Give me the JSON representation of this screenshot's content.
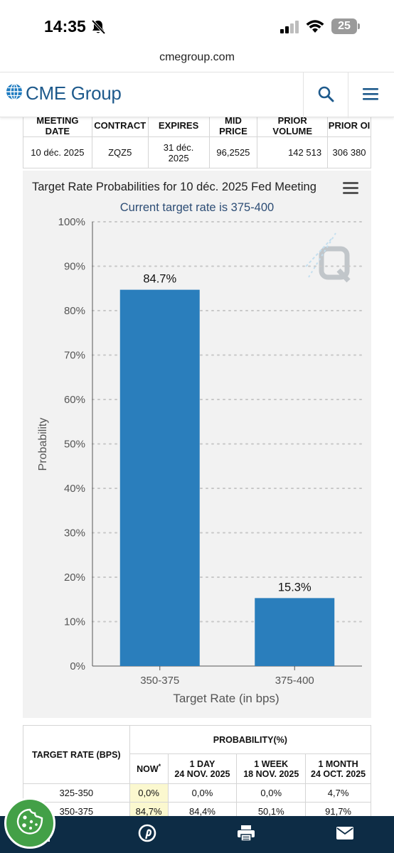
{
  "status_bar": {
    "time": "14:35",
    "battery_level": "25",
    "icons": [
      "bell-slash-icon",
      "signal-icon",
      "wifi-icon",
      "battery-icon"
    ]
  },
  "browser": {
    "url": "cmegroup.com"
  },
  "header": {
    "brand": "CME Group",
    "icons": [
      "globe-logo-icon",
      "search-icon",
      "menu-icon"
    ]
  },
  "contract_table": {
    "headers": [
      "MEETING DATE",
      "CONTRACT",
      "EXPIRES",
      "MID PRICE",
      "PRIOR VOLUME",
      "PRIOR OI"
    ],
    "row": [
      "10 déc. 2025",
      "ZQZ5",
      "31 déc. 2025",
      "96,2525",
      "142 513",
      "306 380"
    ]
  },
  "chart_panel": {
    "menu_icon": "hamburger-menu-icon",
    "watermark_icon": "q-logo-watermark-icon"
  },
  "chart_data": {
    "type": "bar",
    "title": "Target Rate Probabilities for 10 déc. 2025 Fed Meeting",
    "subtitle": "Current target rate is 375-400",
    "categories": [
      "350-375",
      "375-400"
    ],
    "values": [
      84.7,
      15.3
    ],
    "data_labels": [
      "84.7%",
      "15.3%"
    ],
    "xlabel": "Target Rate (in bps)",
    "ylabel": "Probability",
    "ylim": [
      0,
      100
    ],
    "yticks": [
      "0%",
      "10%",
      "20%",
      "30%",
      "40%",
      "50%",
      "60%",
      "70%",
      "80%",
      "90%",
      "100%"
    ],
    "grid": true,
    "bar_color": "#2a7ebc",
    "subtitle_color": "#2d4d75"
  },
  "probability_table": {
    "col_target": "TARGET RATE (BPS)",
    "col_group": "PROBABILITY(%)",
    "col_now": "NOW",
    "col_now_mark": "*",
    "col_1day": [
      "1 DAY",
      "24 NOV. 2025"
    ],
    "col_1week": [
      "1 WEEK",
      "18 NOV. 2025"
    ],
    "col_1month": [
      "1 MONTH",
      "24 OCT. 2025"
    ],
    "rows": [
      [
        "325-350",
        "0,0%",
        "0,0%",
        "0,0%",
        "4,7%"
      ],
      [
        "350-375",
        "84,7%",
        "84,4%",
        "50,1%",
        "91,7%"
      ]
    ]
  },
  "share_bar": {
    "icons": [
      "facebook-icon",
      "pinterest-icon",
      "print-icon",
      "email-icon"
    ]
  },
  "cookie_button": {
    "icon": "cookie-icon",
    "color": "#43a047"
  }
}
